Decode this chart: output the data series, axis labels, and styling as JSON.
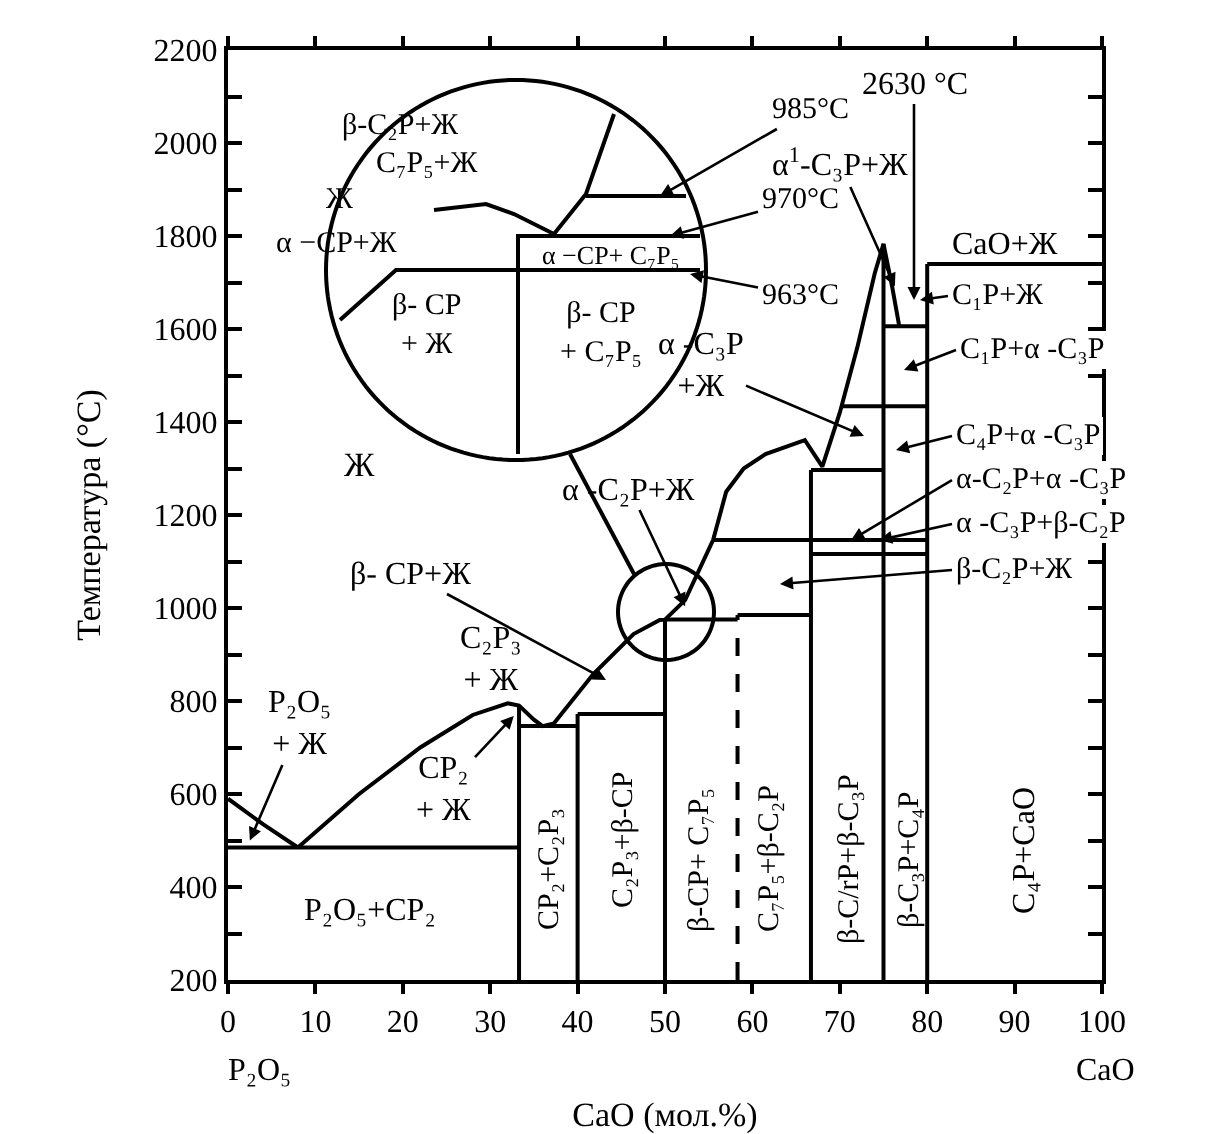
{
  "chart_data": [
    {
      "type": "line",
      "xlabel": "CaO (мол.%)",
      "ylabel": "Температура (°C)",
      "xlim": [
        0,
        100
      ],
      "ylim": [
        200,
        2200
      ],
      "xticks": [
        0,
        10,
        20,
        30,
        40,
        50,
        60,
        70,
        80,
        90,
        100
      ],
      "yticks": [
        200,
        {
          "value": 300,
          "label": null
        },
        400,
        {
          "value": 500,
          "label": null
        },
        600,
        {
          "value": 700,
          "label": null
        },
        800,
        {
          "value": 900,
          "label": null
        },
        1000,
        {
          "value": 1100,
          "label": null
        },
        1200,
        {
          "value": 1300,
          "label": null
        },
        1400,
        {
          "value": 1500,
          "label": null
        },
        1600,
        {
          "value": 1700,
          "label": null
        },
        1800,
        {
          "value": 1900,
          "label": null
        },
        2000,
        {
          "value": 2100,
          "label": null
        },
        2200
      ],
      "line_style": "solid",
      "series": [
        {
          "color": "#000000",
          "x": [
            0,
            4,
            8
          ],
          "values": [
            590,
            535,
            485
          ]
        },
        {
          "color": "#000000",
          "x": [
            8,
            15,
            22,
            28,
            32,
            33.3,
            35,
            36,
            37.3,
            41.8,
            46.4,
            49.4,
            50,
            52.3,
            55.5,
            57,
            59,
            61.5,
            66,
            68,
            70,
            72,
            74,
            75,
            76,
            76.8
          ],
          "values": [
            485,
            600,
            700,
            770,
            795,
            790,
            760,
            746,
            752,
            858,
            944,
            974,
            975,
            1017,
            1146,
            1250,
            1300,
            1331,
            1361,
            1304,
            1420,
            1560,
            1720,
            1783,
            1690,
            1606
          ]
        },
        {
          "color": "#000000",
          "x": [
            33.3,
            33.3
          ],
          "values": [
            200,
            790
          ]
        },
        {
          "color": "#000000",
          "x": [
            40,
            40
          ],
          "values": [
            200,
            772
          ]
        },
        {
          "color": "#000000",
          "x": [
            50,
            50
          ],
          "values": [
            200,
            975
          ]
        },
        {
          "color": "#000000",
          "x": [
            58.3,
            58.3
          ],
          "values": [
            200,
            985
          ],
          "line_style": "dashed"
        },
        {
          "color": "#000000",
          "x": [
            66.7,
            66.7
          ],
          "values": [
            200,
            1297
          ]
        },
        {
          "color": "#000000",
          "x": [
            75,
            75
          ],
          "values": [
            200,
            1783
          ]
        },
        {
          "color": "#000000",
          "x": [
            80,
            80
          ],
          "values": [
            200,
            1740
          ]
        },
        {
          "color": "#000000",
          "x": [
            0,
            33.3
          ],
          "values": [
            485,
            485
          ]
        },
        {
          "color": "#000000",
          "x": [
            33.3,
            40
          ],
          "values": [
            746,
            746
          ]
        },
        {
          "color": "#000000",
          "x": [
            40,
            50
          ],
          "values": [
            772,
            772
          ]
        },
        {
          "color": "#000000",
          "x": [
            50,
            58.3
          ],
          "values": [
            975,
            975
          ]
        },
        {
          "color": "#000000",
          "x": [
            58.3,
            66.7
          ],
          "values": [
            985,
            985
          ]
        },
        {
          "color": "#000000",
          "x": [
            55.5,
            80
          ],
          "values": [
            1146,
            1146
          ]
        },
        {
          "color": "#000000",
          "x": [
            66.7,
            80
          ],
          "values": [
            1116,
            1116
          ]
        },
        {
          "color": "#000000",
          "x": [
            66.7,
            75
          ],
          "values": [
            1297,
            1297
          ]
        },
        {
          "color": "#000000",
          "x": [
            70.2,
            80
          ],
          "values": [
            1434,
            1434
          ]
        },
        {
          "color": "#000000",
          "x": [
            75,
            80
          ],
          "values": [
            1606,
            1606
          ]
        },
        {
          "color": "#000000",
          "x": [
            80,
            100
          ],
          "values": [
            1740,
            1740
          ]
        }
      ],
      "annotations": [
        "Ж",
        {
          "text": "P₂O₅\n+ Ж",
          "x": 2.5,
          "y": 500
        },
        {
          "text": "CP₂\n+ Ж",
          "x": 32.7,
          "y": 768
        },
        "C₂P₃\n+ Ж",
        "β- CP+Ж",
        {
          "text": "α -C₂P+Ж",
          "x": 52.3,
          "y": 1004
        },
        "α -C₃P\n+Ж",
        {
          "text": "α$^{1}$-C₃P+Ж",
          "x": 76.3,
          "y": 1692
        },
        "2630 °C",
        "CaO+Ж",
        "C₁P+Ж",
        "C₁P+α -C₃P",
        "C₄P+α -C₃P",
        {
          "text": "α-C₂P+α -C₃P",
          "x": 71.3,
          "y": 1146
        },
        {
          "text": "α -C₃P+β-C₂P",
          "x": 74.5,
          "y": 1146
        },
        "β-C₂P+Ж",
        "CP₂+C₂P₃",
        "C₂P₃+β-CP",
        "β-CP+ C₇P₅",
        "C₇P₅+β-C₂P",
        "β-C/rP+β-C₃P",
        "β-C₃P+C₄P",
        "C₄P+CaO",
        "P₂O₅+CP₂",
        "P₂O₅",
        "CaO"
      ]
    },
    {
      "type": "other",
      "annotations": [
        "β-C₂P+Ж",
        "C₇P₅+Ж",
        "Ж",
        "α −CP+Ж",
        "α −CP+ C₇P₅",
        "β- CP\n+ Ж",
        "β- CP\n+ C₇P₅",
        "985°C",
        "970°C",
        "963°C"
      ]
    }
  ]
}
